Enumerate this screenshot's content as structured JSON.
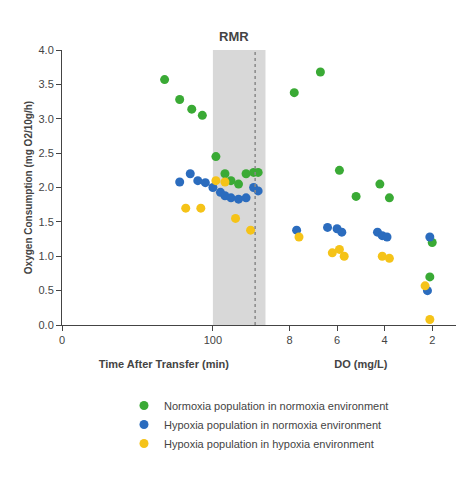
{
  "chart_data": [
    {
      "type": "scatter",
      "annotations": [
        "RMR"
      ],
      "xlabel": "Time After Transfer (min)",
      "ylabel": "Oxygen Consumption (mg O2/10g/h)",
      "xlim": [
        0,
        135
      ],
      "xticks": [
        0,
        100
      ],
      "ylim": [
        0.0,
        4.0
      ],
      "yticks": [
        {
          "value": 0.0,
          "label": "0.0"
        },
        {
          "value": 0.5,
          "label": "0.5"
        },
        {
          "value": 1.0,
          "label": "1.0"
        },
        {
          "value": 1.5,
          "label": "1.5"
        },
        {
          "value": 2.0,
          "label": "2.0"
        },
        {
          "value": 2.5,
          "label": "2.5"
        },
        {
          "value": 3.0,
          "label": "3.0"
        },
        {
          "value": 3.5,
          "label": "3.5"
        },
        {
          "value": 4.0,
          "label": "4.0"
        }
      ],
      "grid": false,
      "legend": "bottom",
      "shaded": {
        "range": [
          100,
          135
        ],
        "color": "#d8d8d8"
      },
      "vline": {
        "x": 128,
        "color": "#888888",
        "line_style": "dotted"
      },
      "series": [
        {
          "name": "Normoxia population in normoxia environment",
          "color": "#3aaa35",
          "marker": "circle",
          "x": [
            68,
            78,
            86,
            93,
            102,
            108,
            112,
            117,
            122,
            127,
            130
          ],
          "values": [
            3.57,
            3.28,
            3.14,
            3.05,
            2.45,
            2.2,
            2.1,
            2.05,
            2.2,
            2.22,
            2.22
          ]
        },
        {
          "name": "Hypoxia population in normoxia environment",
          "color": "#2b6cbe",
          "marker": "circle",
          "x": [
            78,
            85,
            90,
            95,
            100,
            105,
            108,
            112,
            117,
            122,
            127,
            130
          ],
          "values": [
            2.08,
            2.2,
            2.1,
            2.07,
            2.0,
            1.93,
            1.88,
            1.85,
            1.83,
            1.85,
            2.0,
            1.95
          ]
        },
        {
          "name": "Hypoxia population in hypoxia environment",
          "color": "#f5c318",
          "marker": "circle",
          "x": [
            82,
            92,
            102,
            108,
            115,
            125
          ],
          "values": [
            1.7,
            1.7,
            2.1,
            2.08,
            1.55,
            1.38
          ]
        }
      ]
    },
    {
      "type": "scatter",
      "xlabel": "DO (mg/L)",
      "xlim": [
        9,
        1
      ],
      "xticks": [
        8,
        6,
        4,
        2
      ],
      "ylim": [
        0.0,
        4.0
      ],
      "tick_labels": "x",
      "grid": false,
      "series": [
        {
          "name": "Normoxia population in normoxia environment",
          "color": "#3aaa35",
          "marker": "circle",
          "x": [
            7.8,
            6.7,
            5.9,
            5.2,
            4.2,
            3.8,
            2.1,
            2.0
          ],
          "values": [
            3.38,
            3.68,
            2.25,
            1.87,
            2.05,
            1.85,
            0.7,
            1.2
          ]
        },
        {
          "name": "Hypoxia population in normoxia environment",
          "color": "#2b6cbe",
          "marker": "circle",
          "x": [
            7.7,
            6.4,
            6.0,
            5.8,
            4.3,
            4.1,
            3.9,
            2.2,
            2.1
          ],
          "values": [
            1.38,
            1.42,
            1.4,
            1.35,
            1.35,
            1.3,
            1.28,
            0.5,
            1.28
          ]
        },
        {
          "name": "Hypoxia population in hypoxia environment",
          "color": "#f5c318",
          "marker": "circle",
          "x": [
            7.6,
            6.2,
            5.9,
            5.7,
            4.1,
            3.8,
            2.3,
            2.1
          ],
          "values": [
            1.28,
            1.05,
            1.1,
            1.0,
            1.0,
            0.97,
            0.57,
            0.08
          ]
        }
      ]
    }
  ]
}
